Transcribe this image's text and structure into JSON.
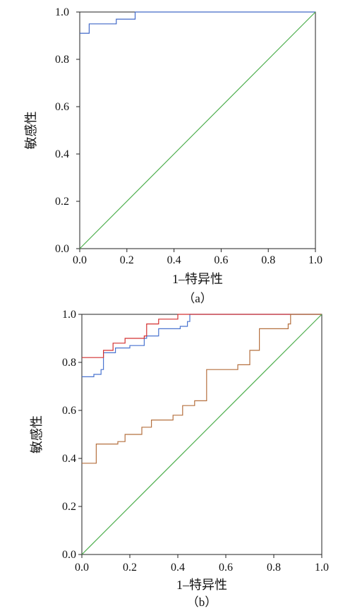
{
  "chart_data": [
    {
      "type": "line",
      "panel_label": "（a）",
      "xlabel": "1–特异性",
      "ylabel": "敏感性",
      "xlim": [
        0,
        1
      ],
      "ylim": [
        0,
        1
      ],
      "xticks": [
        "0.0",
        "0.2",
        "0.4",
        "0.6",
        "0.8",
        "1.0"
      ],
      "yticks": [
        "0.0",
        "0.2",
        "0.4",
        "0.6",
        "0.8",
        "1.0"
      ],
      "grid": false,
      "legend": "none",
      "series": [
        {
          "color": "#4169c8",
          "step": true,
          "points": [
            [
              0,
              0.91
            ],
            [
              0.04,
              0.91
            ],
            [
              0.04,
              0.95
            ],
            [
              0.155,
              0.95
            ],
            [
              0.155,
              0.97
            ],
            [
              0.235,
              0.97
            ],
            [
              0.235,
              1.0
            ],
            [
              1.0,
              1.0
            ]
          ]
        },
        {
          "color": "#4cae4c",
          "step": false,
          "points": [
            [
              0,
              0
            ],
            [
              1,
              1
            ]
          ]
        }
      ]
    },
    {
      "type": "line",
      "panel_label": "（b）",
      "xlabel": "1–特异性",
      "ylabel": "敏感性",
      "xlim": [
        0,
        1
      ],
      "ylim": [
        0,
        1
      ],
      "xticks": [
        "0.0",
        "0.2",
        "0.4",
        "0.6",
        "0.8",
        "1.0"
      ],
      "yticks": [
        "0.0",
        "0.2",
        "0.4",
        "0.6",
        "0.8",
        "1.0"
      ],
      "grid": false,
      "legend": "none",
      "series": [
        {
          "color": "#4a74d0",
          "step": true,
          "points": [
            [
              0,
              0.74
            ],
            [
              0.05,
              0.75
            ],
            [
              0.08,
              0.77
            ],
            [
              0.09,
              0.84
            ],
            [
              0.14,
              0.86
            ],
            [
              0.2,
              0.87
            ],
            [
              0.26,
              0.9
            ],
            [
              0.27,
              0.91
            ],
            [
              0.32,
              0.94
            ],
            [
              0.41,
              0.95
            ],
            [
              0.44,
              0.97
            ],
            [
              0.45,
              1.0
            ],
            [
              1.0,
              1.0
            ]
          ]
        },
        {
          "color": "#d43030",
          "step": true,
          "points": [
            [
              0,
              0.82
            ],
            [
              0.09,
              0.82
            ],
            [
              0.09,
              0.85
            ],
            [
              0.13,
              0.88
            ],
            [
              0.18,
              0.9
            ],
            [
              0.26,
              0.91
            ],
            [
              0.27,
              0.96
            ],
            [
              0.32,
              0.98
            ],
            [
              0.4,
              1.0
            ],
            [
              1.0,
              1.0
            ]
          ]
        },
        {
          "color": "#b5703f",
          "step": true,
          "points": [
            [
              0,
              0.38
            ],
            [
              0.06,
              0.38
            ],
            [
              0.06,
              0.46
            ],
            [
              0.15,
              0.47
            ],
            [
              0.18,
              0.5
            ],
            [
              0.25,
              0.53
            ],
            [
              0.29,
              0.56
            ],
            [
              0.38,
              0.58
            ],
            [
              0.42,
              0.62
            ],
            [
              0.47,
              0.64
            ],
            [
              0.52,
              0.77
            ],
            [
              0.65,
              0.79
            ],
            [
              0.7,
              0.85
            ],
            [
              0.74,
              0.94
            ],
            [
              0.86,
              0.96
            ],
            [
              0.87,
              1.0
            ],
            [
              1.0,
              1.0
            ]
          ]
        },
        {
          "color": "#4cae4c",
          "step": false,
          "points": [
            [
              0,
              0
            ],
            [
              1,
              1
            ]
          ]
        }
      ]
    }
  ]
}
